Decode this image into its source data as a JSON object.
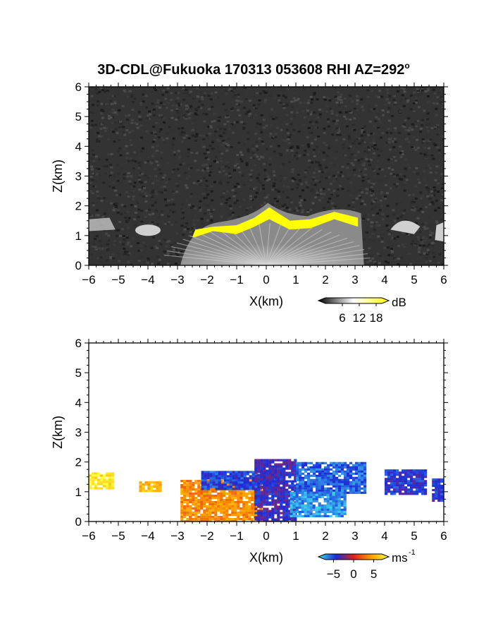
{
  "title": "3D-CDL@Fukuoka 170313 053608 RHI AZ=292",
  "title_degree": "o",
  "chart_data": [
    {
      "type": "heatmap",
      "name": "backscatter",
      "xlabel": "X(km)",
      "ylabel": "Z(km)",
      "xlim": [
        -6,
        6
      ],
      "ylim": [
        0,
        6
      ],
      "xticks": [
        -6,
        -5,
        -4,
        -3,
        -2,
        -1,
        0,
        1,
        2,
        3,
        4,
        5,
        6
      ],
      "yticks": [
        0,
        1,
        2,
        3,
        4,
        5,
        6
      ],
      "colorbar": {
        "unit": "dB",
        "tick_labels": [
          "6",
          "12",
          "18"
        ],
        "ticks": [
          6,
          12,
          18
        ],
        "range": [
          0,
          20
        ],
        "colors": [
          "#000000",
          "#ffffff",
          "#ffff00"
        ]
      },
      "background_color": "#333333",
      "echo_top_km": [
        [
          -6.0,
          1.45
        ],
        [
          -5.3,
          1.55
        ],
        [
          -5.0,
          0.0
        ],
        [
          -4.3,
          1.35
        ],
        [
          -3.7,
          1.3
        ],
        [
          -3.5,
          0.0
        ],
        [
          -2.8,
          0.9
        ],
        [
          -2.0,
          1.4
        ],
        [
          -1.0,
          1.5
        ],
        [
          -0.3,
          1.75
        ],
        [
          0.05,
          2.1
        ],
        [
          0.8,
          1.65
        ],
        [
          1.5,
          1.65
        ],
        [
          2.5,
          1.95
        ],
        [
          3.2,
          1.8
        ],
        [
          3.5,
          0.0
        ],
        [
          4.1,
          1.65
        ],
        [
          4.7,
          1.55
        ],
        [
          5.3,
          1.3
        ],
        [
          6.0,
          1.45
        ]
      ]
    },
    {
      "type": "heatmap",
      "name": "doppler_velocity",
      "xlabel": "X(km)",
      "ylabel": "Z(km)",
      "xlim": [
        -6,
        6
      ],
      "ylim": [
        0,
        6
      ],
      "xticks": [
        -6,
        -5,
        -4,
        -3,
        -2,
        -1,
        0,
        1,
        2,
        3,
        4,
        5,
        6
      ],
      "yticks": [
        0,
        1,
        2,
        3,
        4,
        5,
        6
      ],
      "colorbar": {
        "unit": "ms",
        "unit_exponent": "-1",
        "tick_labels": [
          "-5",
          "0",
          "5"
        ],
        "ticks": [
          -5,
          0,
          5
        ],
        "range": [
          -7,
          7
        ],
        "colors": [
          "#40e0f0",
          "#1a2bd8",
          "#e0201a",
          "#ffa000",
          "#ffff40"
        ]
      },
      "regions": [
        {
          "x": [
            -6.0,
            -5.2
          ],
          "z": [
            1.1,
            1.65
          ],
          "v": 6
        },
        {
          "x": [
            -4.3,
            -3.6
          ],
          "z": [
            1.0,
            1.35
          ],
          "v": 4.5
        },
        {
          "x": [
            -2.9,
            -0.2
          ],
          "z": [
            0.0,
            1.4
          ],
          "v": 3
        },
        {
          "x": [
            -2.2,
            0.3
          ],
          "z": [
            1.1,
            1.7
          ],
          "v": -4
        },
        {
          "x": [
            -0.4,
            1.0
          ],
          "z": [
            0.0,
            2.1
          ],
          "v": -3
        },
        {
          "x": [
            1.0,
            3.3
          ],
          "z": [
            1.0,
            2.0
          ],
          "v": -4.5
        },
        {
          "x": [
            0.8,
            2.7
          ],
          "z": [
            0.2,
            1.0
          ],
          "v": -5.5
        },
        {
          "x": [
            4.0,
            5.4
          ],
          "z": [
            0.95,
            1.75
          ],
          "v": -3.5
        },
        {
          "x": [
            5.6,
            6.0
          ],
          "z": [
            0.7,
            1.45
          ],
          "v": -3.5
        }
      ]
    }
  ]
}
